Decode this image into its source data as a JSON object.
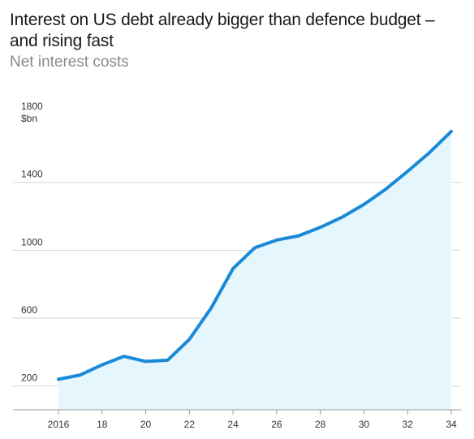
{
  "chart_data": {
    "type": "area",
    "title": "Interest on US debt already bigger than defence budget – and rising fast",
    "subtitle": "Net interest costs",
    "yunit": "$bn",
    "x": [
      2016,
      2017,
      2018,
      2019,
      2020,
      2021,
      2022,
      2023,
      2024,
      2025,
      2026,
      2027,
      2028,
      2029,
      2030,
      2031,
      2032,
      2033,
      2034
    ],
    "series": [
      {
        "values": [
          240,
          265,
          325,
          375,
          345,
          352,
          475,
          660,
          892,
          1015,
          1060,
          1085,
          1135,
          1195,
          1270,
          1360,
          1465,
          1575,
          1700
        ]
      }
    ],
    "xticks": [
      {
        "value": 2016,
        "label": "2016"
      },
      {
        "value": 2018,
        "label": "18"
      },
      {
        "value": 2020,
        "label": "20"
      },
      {
        "value": 2022,
        "label": "22"
      },
      {
        "value": 2024,
        "label": "24"
      },
      {
        "value": 2026,
        "label": "26"
      },
      {
        "value": 2028,
        "label": "28"
      },
      {
        "value": 2030,
        "label": "30"
      },
      {
        "value": 2032,
        "label": "32"
      },
      {
        "value": 2034,
        "label": "34"
      }
    ],
    "yticks": [
      {
        "value": 200,
        "label": "200"
      },
      {
        "value": 600,
        "label": "600"
      },
      {
        "value": 1000,
        "label": "1000"
      },
      {
        "value": 1400,
        "label": "1400"
      },
      {
        "value": 1800,
        "label": "1800"
      }
    ],
    "xlim": [
      2016,
      2034
    ],
    "ylim": [
      0,
      1800
    ],
    "grid": true,
    "colors": {
      "line": "#1a8ad8",
      "fill": "#e6f6fd",
      "grid": "#d6d6d6",
      "axis": "#9a9a9a"
    }
  }
}
